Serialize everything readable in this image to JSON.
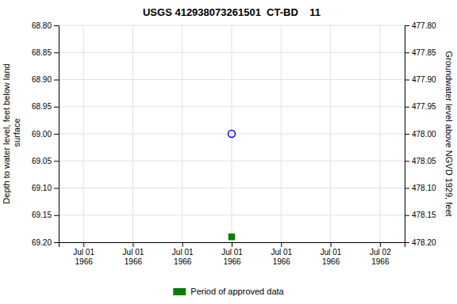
{
  "chart_data": {
    "type": "scatter",
    "title": "USGS 412938073261501  CT-BD    11",
    "y_label": "Depth to water level, feet below land\n surface",
    "y2_label": "Groundwater level above NGVD 1929, feet",
    "categories": [
      "Jul 01\n1966",
      "Jul 01\n1966",
      "Jul 01\n1966",
      "Jul 01\n1966",
      "Jul 01\n1966",
      "Jul 01\n1966",
      "Jul 02\n1966"
    ],
    "series": [
      {
        "color": "blue",
        "marker": "circle-open",
        "values": [
          null,
          null,
          null,
          69.0,
          null,
          null,
          null
        ]
      },
      {
        "name": "Period of approved data",
        "color": "#008000",
        "marker": "square",
        "values": [
          null,
          null,
          null,
          69.19,
          null,
          null,
          null
        ]
      }
    ],
    "ylim": [
      69.2,
      68.8
    ],
    "yticks": [
      {
        "value": 68.8,
        "label": "68.80"
      },
      {
        "value": 68.85,
        "label": "68.85"
      },
      {
        "value": 68.9,
        "label": "68.90"
      },
      {
        "value": 68.95,
        "label": "68.95"
      },
      {
        "value": 69.0,
        "label": "69.00"
      },
      {
        "value": 69.05,
        "label": "69.05"
      },
      {
        "value": 69.1,
        "label": "69.10"
      },
      {
        "value": 69.15,
        "label": "69.15"
      },
      {
        "value": 69.2,
        "label": "69.20"
      }
    ],
    "y2lim": [
      478.2,
      477.8
    ],
    "y2ticks": [
      {
        "value": 477.8,
        "label": "477.80"
      },
      {
        "value": 477.85,
        "label": "477.85"
      },
      {
        "value": 477.9,
        "label": "477.90"
      },
      {
        "value": 477.95,
        "label": "477.95"
      },
      {
        "value": 478.0,
        "label": "478.00"
      },
      {
        "value": 478.05,
        "label": "478.05"
      },
      {
        "value": 478.1,
        "label": "478.10"
      },
      {
        "value": 478.15,
        "label": "478.15"
      },
      {
        "value": 478.2,
        "label": "478.20"
      }
    ],
    "grid": true,
    "legend": "bottom"
  }
}
